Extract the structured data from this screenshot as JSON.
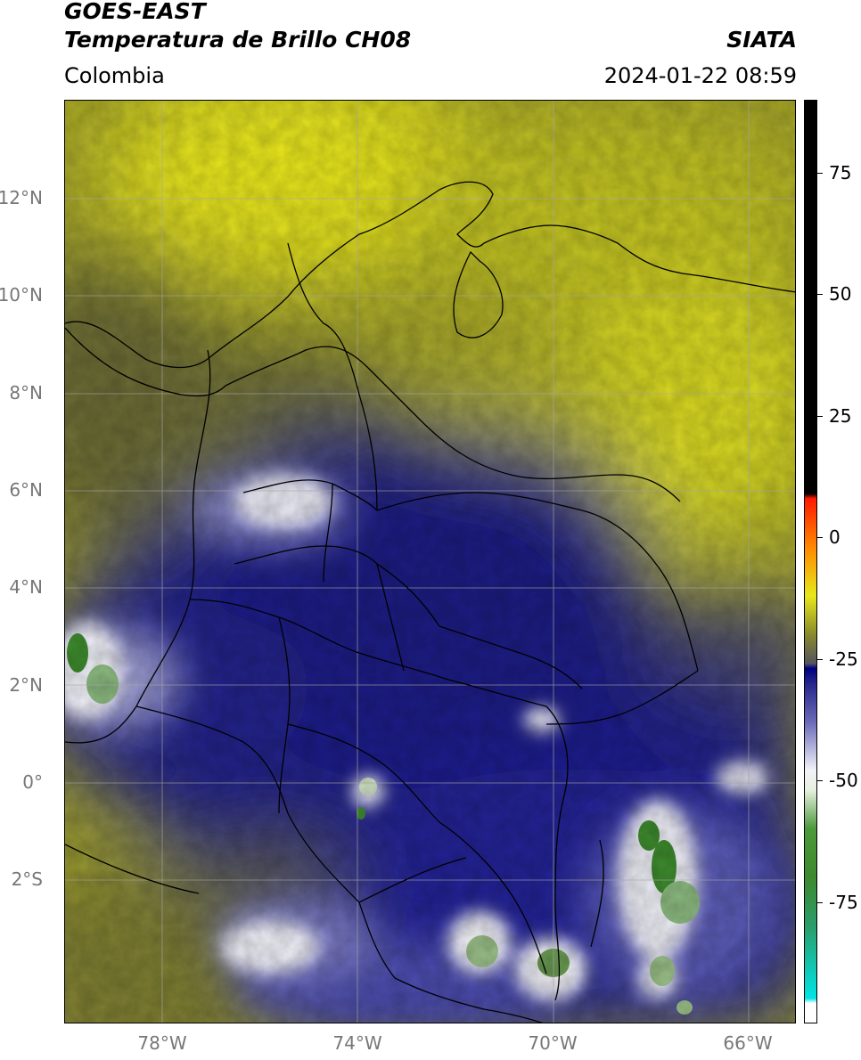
{
  "header": {
    "satellite": "GOES-EAST",
    "product": "Temperatura de Brillo CH08",
    "brand": "SIATA",
    "region": "Colombia",
    "datetime": "2024-01-22 08:59"
  },
  "map": {
    "lat_range": [
      -5.0,
      14.0
    ],
    "lon_range": [
      -80.0,
      -65.0
    ],
    "lat_ticks": [
      {
        "value": 12,
        "label": "12°N"
      },
      {
        "value": 10,
        "label": "10°N"
      },
      {
        "value": 8,
        "label": "8°N"
      },
      {
        "value": 6,
        "label": "6°N"
      },
      {
        "value": 4,
        "label": "4°N"
      },
      {
        "value": 2,
        "label": "2°N"
      },
      {
        "value": 0,
        "label": "0°"
      },
      {
        "value": -2,
        "label": "2°S"
      }
    ],
    "lon_ticks": [
      {
        "value": -78,
        "label": "78°W"
      },
      {
        "value": -74,
        "label": "74°W"
      },
      {
        "value": -70,
        "label": "70°W"
      },
      {
        "value": -66,
        "label": "66°W"
      }
    ],
    "gridlines": true,
    "colors": {
      "warm_yellow": "#e8e61a",
      "olive": "#8a8a2c",
      "dark_olive": "#55552a",
      "navy": "#1a1a85",
      "mid_blue": "#3a3aa8",
      "cold_white": "#f2f2f8",
      "cold_green": "#3d8a2d",
      "borders": "#000000",
      "grid": "#999999"
    }
  },
  "colorbar": {
    "range": [
      -100,
      90
    ],
    "ticks": [
      {
        "value": 75,
        "label": "75"
      },
      {
        "value": 50,
        "label": "50"
      },
      {
        "value": 25,
        "label": "25"
      },
      {
        "value": 0,
        "label": "0"
      },
      {
        "value": -25,
        "label": "-25"
      },
      {
        "value": -50,
        "label": "-50"
      },
      {
        "value": -75,
        "label": "-75"
      }
    ],
    "stops": [
      {
        "value": -100,
        "color": "#ffffff"
      },
      {
        "value": -96,
        "color": "#ffffff"
      },
      {
        "value": -95,
        "color": "#00e5e5"
      },
      {
        "value": -80,
        "color": "#2a9d6a"
      },
      {
        "value": -70,
        "color": "#3d8a2d"
      },
      {
        "value": -60,
        "color": "#4c9a3c"
      },
      {
        "value": -52,
        "color": "#e8f0e0"
      },
      {
        "value": -48,
        "color": "#f2f2f8"
      },
      {
        "value": -38,
        "color": "#6a6ab8"
      },
      {
        "value": -30,
        "color": "#25258c"
      },
      {
        "value": -27,
        "color": "#000080"
      },
      {
        "value": -26,
        "color": "#555560"
      },
      {
        "value": -20,
        "color": "#8a8a2c"
      },
      {
        "value": -12,
        "color": "#e8e81a"
      },
      {
        "value": -2,
        "color": "#ff8800"
      },
      {
        "value": 8,
        "color": "#ff1a00"
      },
      {
        "value": 9,
        "color": "#000000"
      },
      {
        "value": 90,
        "color": "#000000"
      }
    ]
  }
}
